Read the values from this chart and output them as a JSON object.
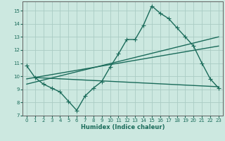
{
  "xlabel": "Humidex (Indice chaleur)",
  "bg_color": "#cce8e0",
  "grid_color": "#aaccc4",
  "line_color": "#1a6b5a",
  "xlim": [
    -0.5,
    23.5
  ],
  "ylim": [
    7,
    15.7
  ],
  "xticks": [
    0,
    1,
    2,
    3,
    4,
    5,
    6,
    7,
    8,
    9,
    10,
    11,
    12,
    13,
    14,
    15,
    16,
    17,
    18,
    19,
    20,
    21,
    22,
    23
  ],
  "yticks": [
    7,
    8,
    9,
    10,
    11,
    12,
    13,
    14,
    15
  ],
  "line1_x": [
    0,
    1,
    2,
    3,
    4,
    5,
    6,
    7,
    8,
    9,
    10,
    11,
    12,
    13,
    14,
    15,
    16,
    17,
    18,
    19,
    20,
    21,
    22,
    23
  ],
  "line1_y": [
    10.8,
    9.9,
    9.4,
    9.1,
    8.8,
    8.1,
    7.4,
    8.5,
    9.1,
    9.6,
    10.7,
    11.7,
    12.8,
    12.8,
    13.9,
    15.35,
    14.8,
    14.4,
    13.7,
    13.0,
    12.3,
    11.0,
    9.8,
    9.1
  ],
  "line2_x": [
    0,
    23
  ],
  "line2_y": [
    9.4,
    13.0
  ],
  "line3_x": [
    0,
    23
  ],
  "line3_y": [
    9.8,
    12.3
  ],
  "line4_x": [
    1,
    23
  ],
  "line4_y": [
    9.9,
    9.2
  ],
  "markersize": 2.5,
  "linewidth": 1.0,
  "tick_fontsize": 5.0,
  "xlabel_fontsize": 6.0
}
